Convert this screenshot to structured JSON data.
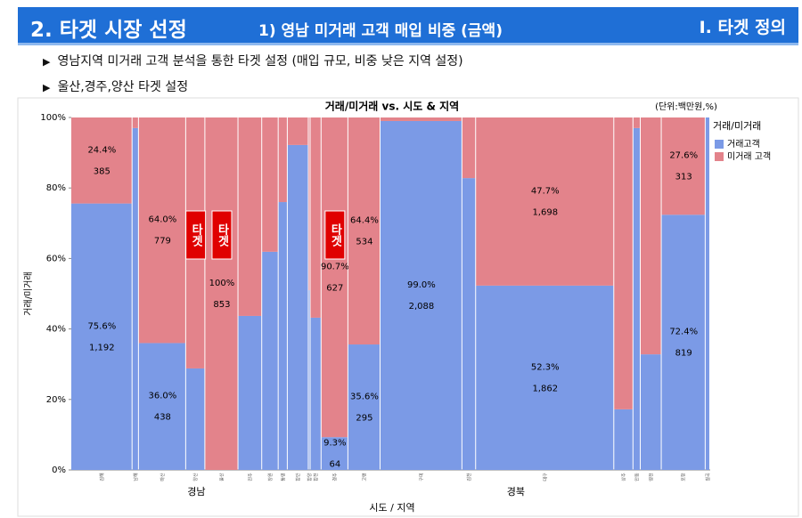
{
  "header": {
    "title": "2. 타겟 시장 선정",
    "subtitle": "1) 영남 미거래 고객 매입 비중 (금액)",
    "section": "I. 타겟 정의"
  },
  "bullets": [
    "영남지역 미거래 고객 분석을 통한 타겟 설정 (매입 규모, 비중 낮은 지역 설정)",
    "울산,경주,양산 타겟 설정"
  ],
  "chart_data": {
    "type": "mekko",
    "title": "거래/미거래 vs. 시도 & 지역",
    "unit_note": "(단위:백만원,%)",
    "x_label": "시도 / 지역",
    "y_label": "거래/미거래",
    "legend_title": "거래/미거래",
    "categories": [
      "김해",
      "남해",
      "마산",
      "양산",
      "울산",
      "진주",
      "창원",
      "통영",
      "함안",
      "함양",
      "합천",
      "경주",
      "고령",
      "구미",
      "김천",
      "대구",
      "상주",
      "안동",
      "영천",
      "포항",
      "칠곡"
    ],
    "widths": [
      1577,
      165,
      1217,
      494,
      853,
      612,
      424,
      235,
      541,
      47,
      282,
      691,
      829,
      2109,
      353,
      3560,
      494,
      188,
      541,
      1132,
      118
    ],
    "groups": [
      {
        "label": "경남",
        "start": 0,
        "end": 10
      },
      {
        "label": "경북",
        "start": 11,
        "end": 20
      }
    ],
    "series": [
      {
        "name": "거래고객",
        "color": "#7b9ae6",
        "values": [
          75.6,
          97,
          36.0,
          28.8,
          0,
          43.7,
          61.9,
          76.0,
          92.2,
          51,
          43.2,
          9.3,
          35.6,
          99.0,
          82.8,
          52.3,
          17.2,
          97,
          32.8,
          72.4,
          100
        ],
        "value_labels": [
          "75.6%",
          null,
          "36.0%",
          null,
          null,
          null,
          null,
          null,
          null,
          null,
          null,
          "9.3%",
          "35.6%",
          "99.0%",
          null,
          "52.3%",
          null,
          null,
          null,
          "72.4%",
          null
        ],
        "amounts": [
          1192,
          null,
          438,
          null,
          null,
          null,
          null,
          null,
          null,
          null,
          null,
          64,
          295,
          2088,
          null,
          1862,
          null,
          null,
          null,
          819,
          null
        ],
        "amount_labels": [
          "1,192",
          null,
          "438",
          null,
          null,
          null,
          null,
          null,
          null,
          null,
          null,
          "64",
          "295",
          "2,088",
          null,
          "1,862",
          null,
          null,
          null,
          "819",
          null
        ]
      },
      {
        "name": "미거래 고객",
        "color": "#e3838b",
        "values": [
          24.4,
          3,
          64.0,
          71.2,
          100,
          56.3,
          38.1,
          24.0,
          7.8,
          49,
          56.8,
          90.7,
          64.4,
          1.0,
          17.2,
          47.7,
          82.8,
          3,
          67.2,
          27.6,
          0
        ],
        "value_labels": [
          "24.4%",
          null,
          "64.0%",
          null,
          "100%",
          null,
          null,
          null,
          null,
          null,
          null,
          "90.7%",
          "64.4%",
          null,
          null,
          "47.7%",
          null,
          null,
          null,
          "27.6%",
          null
        ],
        "amounts": [
          385,
          null,
          779,
          null,
          853,
          null,
          null,
          null,
          null,
          null,
          null,
          627,
          534,
          null,
          null,
          1698,
          null,
          null,
          null,
          313,
          null
        ],
        "amount_labels": [
          "385",
          null,
          "779",
          null,
          "853",
          null,
          null,
          null,
          null,
          null,
          null,
          "627",
          "534",
          null,
          null,
          "1,698",
          null,
          null,
          null,
          "313",
          null
        ]
      }
    ],
    "annotations": [
      {
        "column": 3,
        "text": "타겟"
      },
      {
        "column": 4,
        "text": "타겟"
      },
      {
        "column": 11,
        "text": "타겟"
      }
    ],
    "ylim": [
      0,
      100
    ],
    "yticks": [
      {
        "value": 0,
        "label": "0%"
      },
      {
        "value": 20,
        "label": "20%"
      },
      {
        "value": 40,
        "label": "40%"
      },
      {
        "value": 60,
        "label": "60%"
      },
      {
        "value": 80,
        "label": "80%"
      },
      {
        "value": 100,
        "label": "100%"
      }
    ]
  }
}
